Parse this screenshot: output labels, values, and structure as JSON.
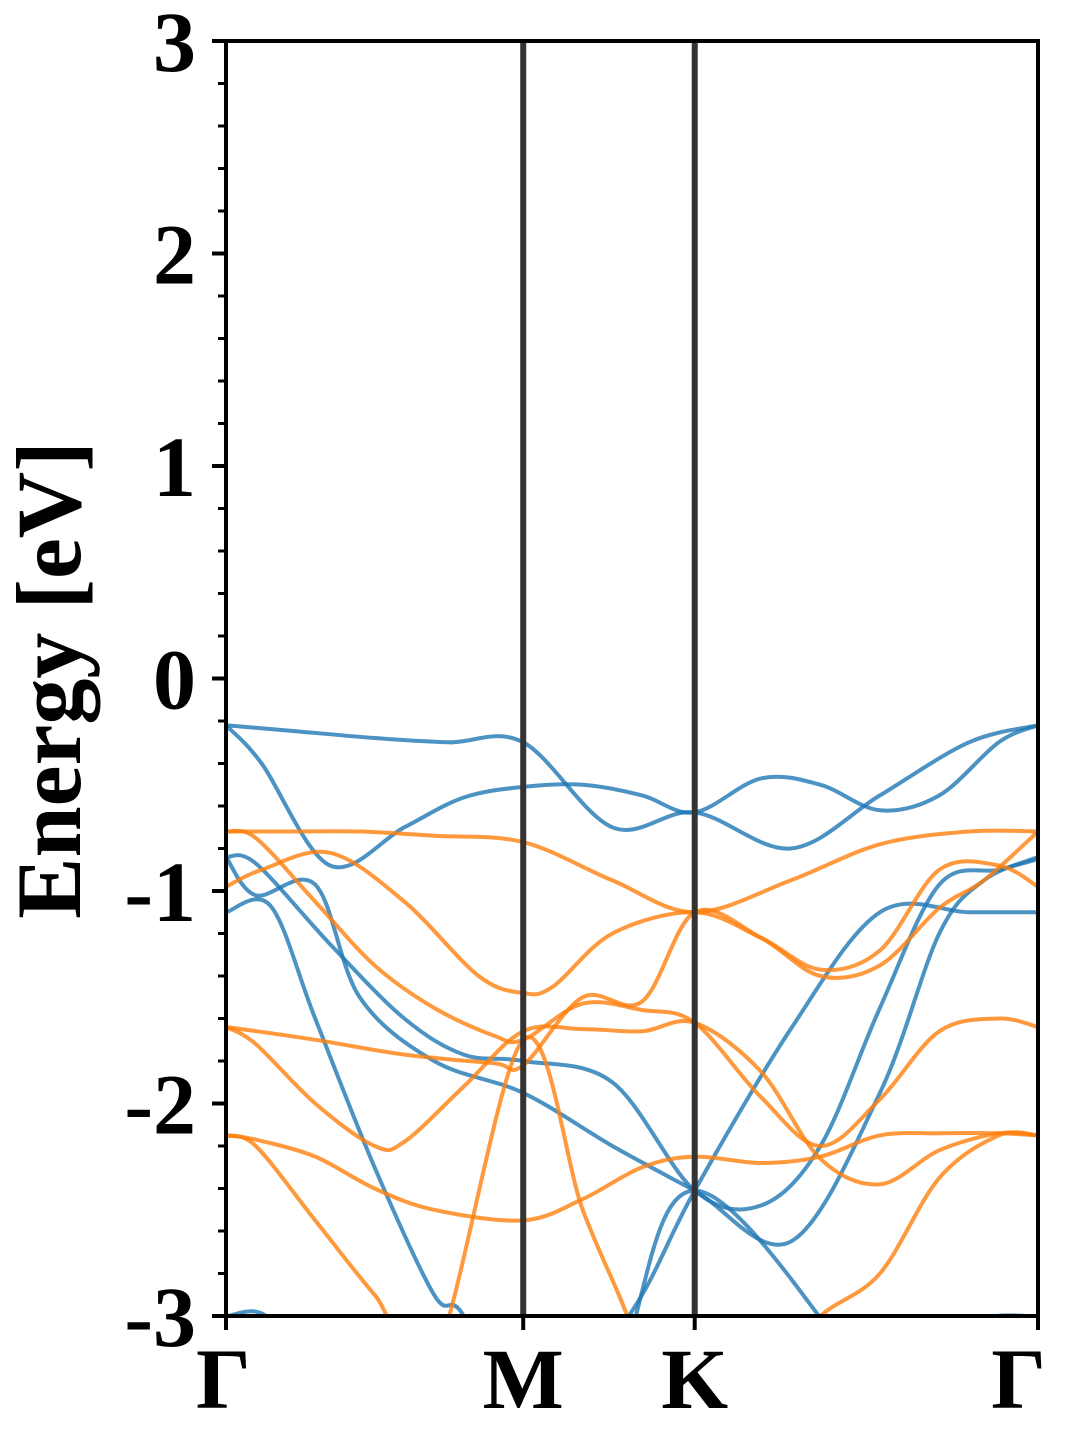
{
  "chart_data": {
    "type": "line",
    "title": "",
    "xlabel": "",
    "ylabel": "Energy [eV]",
    "ylim": [
      -3,
      3
    ],
    "y_ticks": [
      {
        "value": 3,
        "label": "3"
      },
      {
        "value": 2,
        "label": "2"
      },
      {
        "value": 1,
        "label": "1"
      },
      {
        "value": 0,
        "label": "0"
      },
      {
        "value": -1,
        "label": "-1"
      },
      {
        "value": -2,
        "label": "-2"
      },
      {
        "value": -3,
        "label": "-3"
      }
    ],
    "y_minor_step": 0.2,
    "x_path": {
      "range": [
        0,
        2.732
      ],
      "points": [
        {
          "label": "Γ",
          "x": 0
        },
        {
          "label": "M",
          "x": 1.0
        },
        {
          "label": "K",
          "x": 1.577
        },
        {
          "label": "Γ",
          "x": 2.732
        }
      ]
    },
    "grid": false,
    "legend": "none",
    "colors": {
      "blue": "#1f77b4",
      "orange": "#ff7f0e",
      "vline": "#333333"
    },
    "series": [
      {
        "color_key": "blue",
        "x": [
          0,
          0.25,
          0.5,
          0.75,
          1.0,
          1.3,
          1.577,
          1.9,
          2.2,
          2.5,
          2.732
        ],
        "y": [
          -0.22,
          -0.25,
          -0.28,
          -0.3,
          -0.3,
          -0.7,
          -0.63,
          -0.8,
          -0.55,
          -0.3,
          -0.22
        ]
      },
      {
        "color_key": "blue",
        "x": [
          0,
          0.12,
          0.35,
          0.6,
          0.8,
          1.0,
          1.2,
          1.4,
          1.577,
          1.8,
          2.0,
          2.2,
          2.4,
          2.6,
          2.732
        ],
        "y": [
          -0.22,
          -0.4,
          -0.88,
          -0.7,
          -0.56,
          -0.51,
          -0.5,
          -0.55,
          -0.63,
          -0.47,
          -0.5,
          -0.62,
          -0.55,
          -0.3,
          -0.22
        ]
      },
      {
        "color_key": "blue",
        "x": [
          0,
          0.1,
          0.35,
          0.6,
          0.8,
          1.0,
          1.3,
          1.577,
          1.8,
          2.0,
          2.2,
          2.4,
          2.6,
          2.732
        ],
        "y": [
          -0.84,
          -0.87,
          -1.25,
          -1.6,
          -1.77,
          -1.8,
          -1.9,
          -2.41,
          -2.48,
          -2.2,
          -1.55,
          -0.97,
          -0.9,
          -0.85
        ]
      },
      {
        "color_key": "blue",
        "x": [
          0,
          0.1,
          0.3,
          0.45,
          0.7,
          1.0,
          1.3,
          1.577,
          1.9,
          2.2,
          2.4,
          2.55,
          2.732
        ],
        "y": [
          -0.84,
          -1.02,
          -0.97,
          -1.5,
          -1.8,
          -1.95,
          -2.2,
          -2.41,
          -2.65,
          -1.95,
          -1.2,
          -0.95,
          -0.84
        ]
      },
      {
        "color_key": "blue",
        "x": [
          0,
          0.15,
          0.3,
          0.5,
          0.7,
          0.8,
          1.0,
          1.2,
          1.4,
          1.577,
          1.9,
          2.2,
          2.5,
          2.732
        ],
        "y": [
          -1.1,
          -1.07,
          -1.6,
          -2.3,
          -2.9,
          -3.0,
          -3.6,
          -3.3,
          -2.9,
          -2.41,
          -1.65,
          -1.1,
          -1.1,
          -1.1
        ]
      },
      {
        "color_key": "blue",
        "x": [
          0,
          0.15,
          0.3,
          1.2,
          1.577,
          2.3,
          2.5,
          2.732
        ],
        "y": [
          -3.0,
          -3.02,
          -3.5,
          -3.5,
          -2.41,
          -3.5,
          -3.05,
          -3.0
        ]
      },
      {
        "color_key": "orange",
        "x": [
          0,
          0.2,
          0.45,
          0.7,
          1.0,
          1.3,
          1.577,
          1.9,
          2.2,
          2.5,
          2.732
        ],
        "y": [
          -0.72,
          -0.72,
          -0.72,
          -0.74,
          -0.77,
          -0.95,
          -1.1,
          -0.95,
          -0.78,
          -0.72,
          -0.72
        ]
      },
      {
        "color_key": "orange",
        "x": [
          0,
          0.12,
          0.35,
          0.6,
          0.85,
          1.0,
          1.1,
          1.3,
          1.577,
          1.8,
          2.0,
          2.2,
          2.4,
          2.6,
          2.732
        ],
        "y": [
          -0.98,
          -0.9,
          -0.82,
          -1.05,
          -1.4,
          -1.48,
          -1.45,
          -1.2,
          -1.1,
          -1.22,
          -1.37,
          -1.28,
          -0.9,
          -0.88,
          -0.98
        ]
      },
      {
        "color_key": "orange",
        "x": [
          0,
          0.1,
          0.3,
          0.5,
          0.7,
          0.9,
          1.0,
          1.2,
          1.4,
          1.577,
          1.8,
          2.0,
          2.2,
          2.4,
          2.6,
          2.732
        ],
        "y": [
          -0.72,
          -0.75,
          -1.05,
          -1.35,
          -1.55,
          -1.68,
          -1.7,
          -1.53,
          -1.56,
          -1.62,
          -1.97,
          -2.2,
          -1.98,
          -1.66,
          -1.6,
          -1.64
        ]
      },
      {
        "color_key": "orange",
        "x": [
          0,
          0.3,
          0.6,
          0.9,
          1.0,
          1.2,
          1.4,
          1.577,
          1.8,
          2.0,
          2.2,
          2.4,
          2.55,
          2.732
        ],
        "y": [
          -1.64,
          -1.7,
          -1.77,
          -1.81,
          -1.82,
          -1.5,
          -1.52,
          -1.1,
          -1.22,
          -1.4,
          -1.35,
          -1.08,
          -0.95,
          -0.72
        ]
      },
      {
        "color_key": "orange",
        "x": [
          0,
          0.1,
          0.3,
          0.5,
          0.6,
          0.8,
          1.0,
          1.2,
          1.4,
          1.577,
          1.8,
          2.0,
          2.2,
          2.4,
          2.6,
          2.732
        ],
        "y": [
          -1.64,
          -1.72,
          -2.0,
          -2.2,
          -2.18,
          -1.92,
          -1.66,
          -1.65,
          -1.66,
          -1.62,
          -1.85,
          -2.26,
          -2.38,
          -2.22,
          -2.14,
          -2.15
        ]
      },
      {
        "color_key": "orange",
        "x": [
          0,
          0.1,
          0.3,
          0.5,
          0.7,
          1.0,
          1.2,
          1.4,
          1.577,
          1.8,
          2.0,
          2.2,
          2.4,
          2.6,
          2.732
        ],
        "y": [
          -2.15,
          -2.17,
          -2.25,
          -2.4,
          -2.5,
          -2.55,
          -2.45,
          -2.3,
          -2.25,
          -2.28,
          -2.25,
          -2.15,
          -2.14,
          -2.14,
          -2.15
        ]
      },
      {
        "color_key": "orange",
        "x": [
          0,
          0.1,
          0.3,
          0.5,
          0.7,
          1.0,
          1.2,
          1.35,
          1.4,
          1.577,
          1.8,
          2.0,
          2.2,
          2.4,
          2.6,
          2.732
        ],
        "y": [
          -2.15,
          -2.2,
          -2.55,
          -2.9,
          -3.2,
          -1.7,
          -2.5,
          -3.0,
          -3.3,
          -3.5,
          -3.3,
          -3.0,
          -2.8,
          -2.35,
          -2.15,
          -2.15
        ]
      }
    ]
  }
}
